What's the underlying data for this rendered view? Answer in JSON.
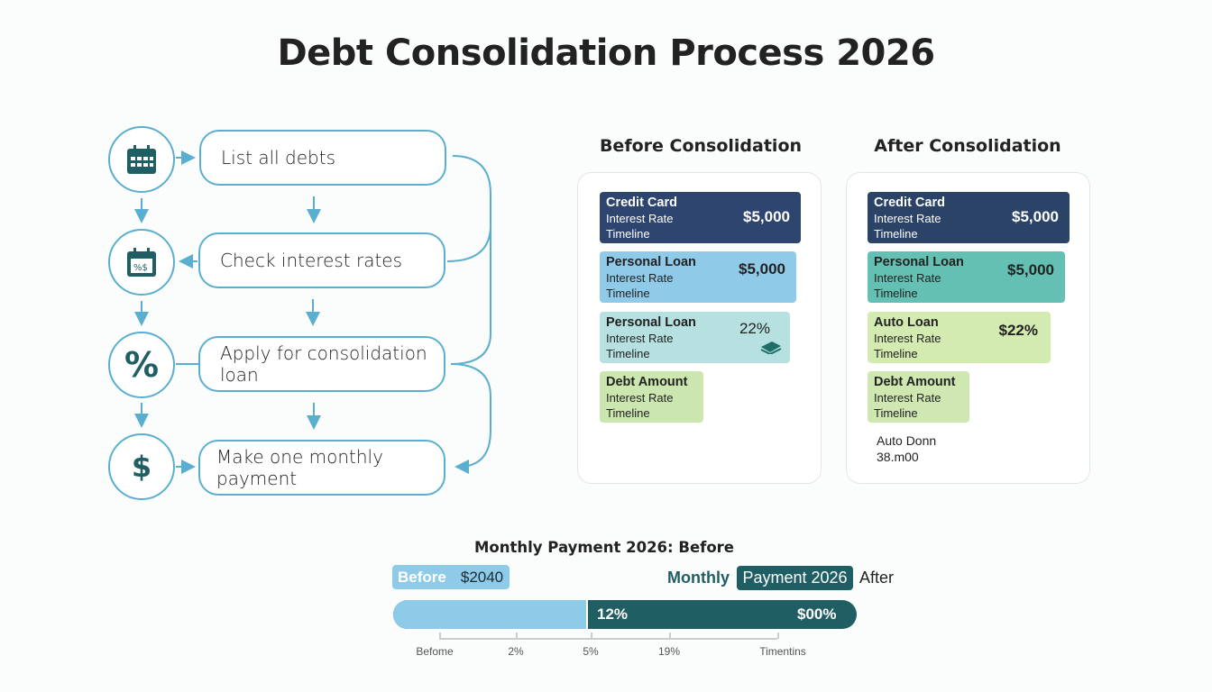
{
  "title": "Debt Consolidation Process 2026",
  "steps": [
    {
      "label": "List all debts",
      "icon": "calendar-icon"
    },
    {
      "label": "Check interest rates",
      "icon": "calendar-rates-icon"
    },
    {
      "label": "Apply for consolidation loan",
      "icon": "percent-icon"
    },
    {
      "label": "Make one monthly payment",
      "icon": "dollar-icon"
    }
  ],
  "before": {
    "heading": "Before Consolidation",
    "cards": [
      {
        "title": "Credit Card",
        "line1": "Interest Rate",
        "line2": "Timeline",
        "value": "$5,000",
        "color": "#2e4570"
      },
      {
        "title": "Personal Loan",
        "line1": "Interest Rate",
        "line2": "Timeline",
        "value": "$5,000",
        "color": "#8fcbe9"
      },
      {
        "title": "Personal Loan",
        "line1": "Interest Rate",
        "line2": "Timeline",
        "value": "22%",
        "color": "#b6e1e0"
      },
      {
        "title": "Debt Amount",
        "line1": "Interest Rate",
        "line2": "Timeline",
        "color": "#cce6b0"
      }
    ]
  },
  "after": {
    "heading": "After Consolidation",
    "cards": [
      {
        "title": "Credit Card",
        "line1": "Interest Rate",
        "line2": "Timeline",
        "value": "$5,000",
        "color": "#2a4366"
      },
      {
        "title": "Personal Loan",
        "line1": "Interest Rate",
        "line2": "Timeline",
        "value": "$5,000",
        "color": "#63c0b2"
      },
      {
        "title": "Auto Loan",
        "line1": "Interest Rate",
        "line2": "Timeline",
        "value": "$22%",
        "color": "#d3eab0"
      },
      {
        "title": "Debt Amount",
        "line1": "Interest Rate",
        "line2": "Timeline",
        "color": "#cfe8b2"
      }
    ],
    "note1": "Auto Donn",
    "note2": "38.m00"
  },
  "payment": {
    "title": "Monthly Payment 2026: Before",
    "before_label": "Before",
    "before_value": "$2040",
    "monthly": "Monthly",
    "after_pill": "Payment 2026",
    "after": "After",
    "bar_left_pct": "12%",
    "bar_right_pct": "$00%",
    "before_fraction": 0.42,
    "axis": [
      "Befome",
      "2%",
      "5%",
      "19%",
      "Timentins"
    ]
  },
  "colors": {
    "accent": "#5aafd0",
    "teal": "#1f5e63",
    "light_blue": "#8ecbe9"
  }
}
